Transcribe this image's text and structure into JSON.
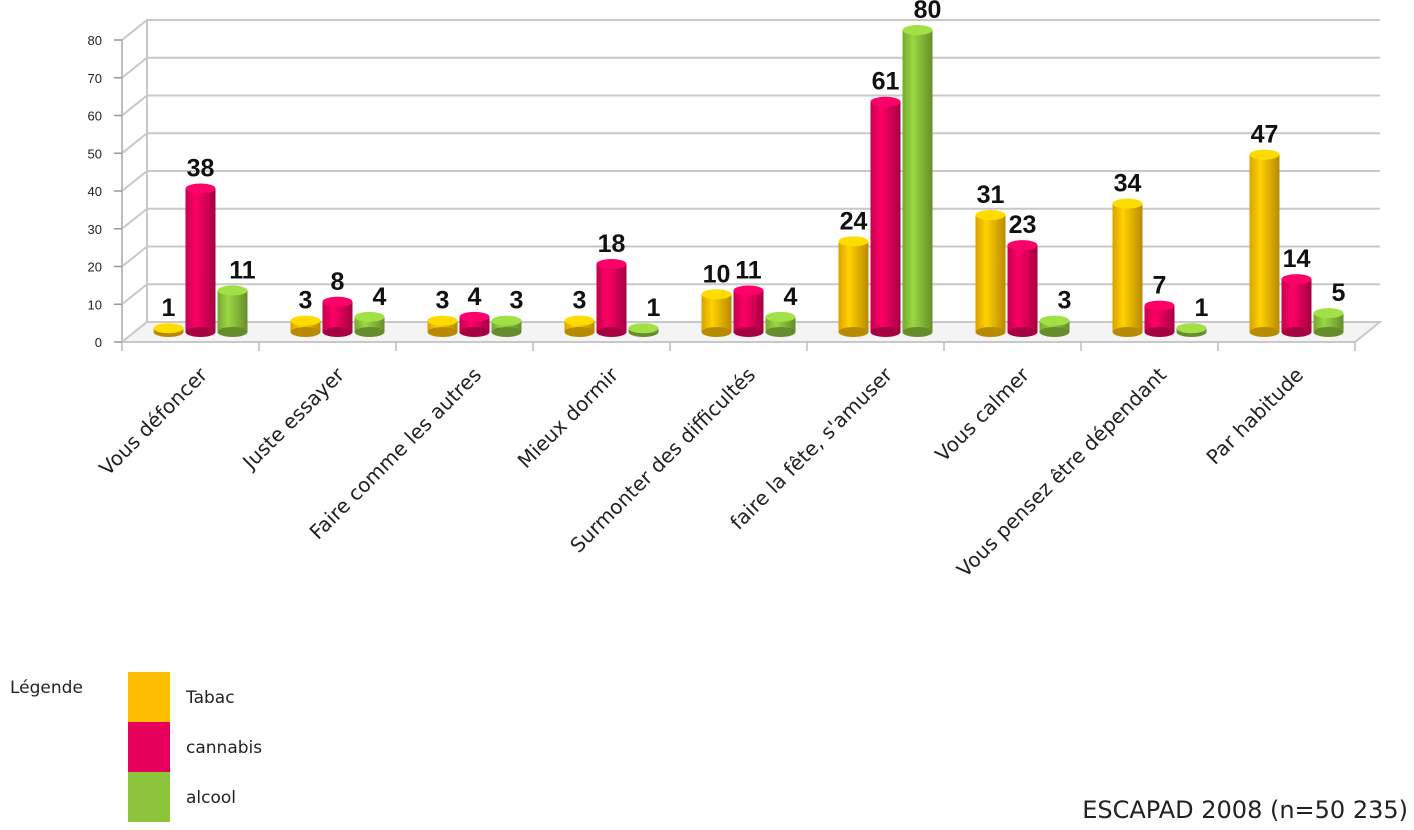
{
  "chart_data": {
    "type": "bar",
    "categories": [
      "Vous défoncer",
      "Juste  essayer",
      "Faire comme les autres",
      "Mieux dormir",
      "Surmonter des difficultés",
      "faire la fête, s'amuser",
      "Vous calmer",
      "Vous pensez être dépendant",
      "Par habitude"
    ],
    "series": [
      {
        "name": "Tabac",
        "color": "#ffbf00",
        "values": [
          1,
          3,
          3,
          3,
          10,
          24,
          31,
          34,
          47
        ]
      },
      {
        "name": "cannabis",
        "color": "#e6005c",
        "values": [
          38,
          8,
          4,
          18,
          11,
          61,
          23,
          7,
          14
        ]
      },
      {
        "name": "alcool",
        "color": "#8cc43c",
        "values": [
          11,
          4,
          3,
          1,
          4,
          80,
          3,
          1,
          5
        ]
      }
    ],
    "yticks": [
      "0",
      "10",
      "20",
      "30",
      "40",
      "50",
      "60",
      "70",
      "80"
    ],
    "ylim": [
      0,
      80
    ],
    "grid": true,
    "legend_position": "bottom-left"
  },
  "legend": {
    "title": "Légende",
    "items": [
      {
        "label": "Tabac",
        "color": "#ffbf00"
      },
      {
        "label": "cannabis",
        "color": "#e6005c"
      },
      {
        "label": "alcool",
        "color": "#8cc43c"
      }
    ]
  },
  "source": "ESCAPAD 2008 (n=50 235)"
}
